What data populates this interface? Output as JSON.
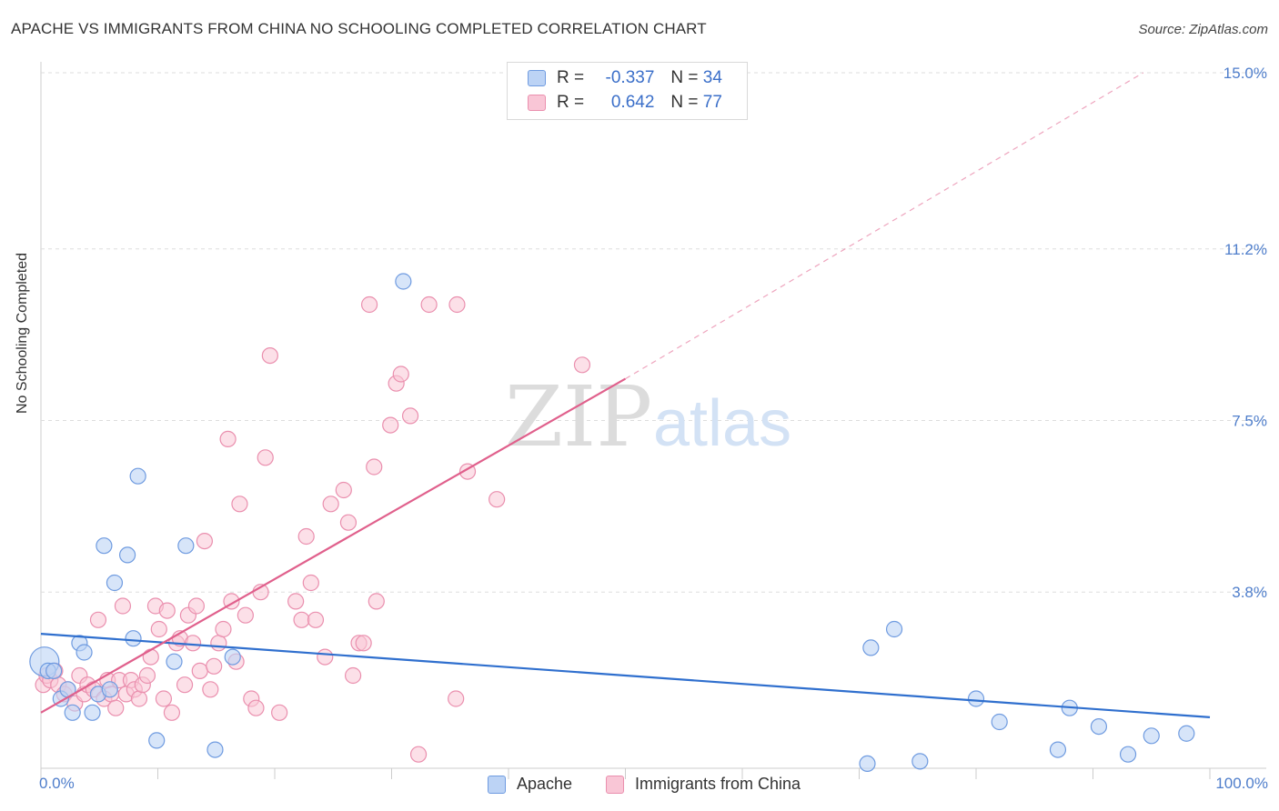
{
  "title": "APACHE VS IMMIGRANTS FROM CHINA NO SCHOOLING COMPLETED CORRELATION CHART",
  "source": "Source: ZipAtlas.com",
  "watermark": {
    "zip": "ZIP",
    "atlas": "atlas"
  },
  "legend_top": {
    "rows": [
      {
        "r_label": "R =",
        "r_value": "-0.337",
        "n_label": "N =",
        "n_value": "34"
      },
      {
        "r_label": "R =",
        "r_value": "0.642",
        "n_label": "N =",
        "n_value": "77"
      }
    ]
  },
  "colors": {
    "apache_fill": "#bcd3f5",
    "apache_stroke": "#6f9be0",
    "apache_line": "#2f6fce",
    "china_fill": "#f9c6d6",
    "china_stroke": "#ea8fae",
    "china_line": "#e0608c",
    "grid": "#dddddd",
    "tick_text": "#4f7ecb"
  },
  "chart_data": {
    "type": "scatter",
    "title": "APACHE VS IMMIGRANTS FROM CHINA NO SCHOOLING COMPLETED CORRELATION CHART",
    "xlabel": "",
    "ylabel": "No Schooling Completed",
    "xlim": [
      0,
      100
    ],
    "ylim": [
      0,
      15
    ],
    "x_tick_labels": [
      "0.0%",
      "100.0%"
    ],
    "y_ticks": [
      3.8,
      7.5,
      11.2,
      15.0
    ],
    "y_tick_labels": [
      "3.8%",
      "7.5%",
      "11.2%",
      "15.0%"
    ],
    "grid": true,
    "legend_position": "bottom",
    "series": [
      {
        "name": "Apache",
        "r": -0.337,
        "n": 34,
        "trend": {
          "x": [
            0,
            100
          ],
          "y": [
            2.9,
            1.1
          ]
        },
        "points": [
          [
            0.3,
            2.3
          ],
          [
            0.6,
            2.1
          ],
          [
            1.1,
            2.1
          ],
          [
            1.7,
            1.5
          ],
          [
            2.3,
            1.7
          ],
          [
            2.7,
            1.2
          ],
          [
            3.3,
            2.7
          ],
          [
            3.7,
            2.5
          ],
          [
            4.4,
            1.2
          ],
          [
            4.9,
            1.6
          ],
          [
            5.4,
            4.8
          ],
          [
            5.9,
            1.7
          ],
          [
            6.3,
            4.0
          ],
          [
            7.4,
            4.6
          ],
          [
            7.9,
            2.8
          ],
          [
            8.3,
            6.3
          ],
          [
            9.9,
            0.6
          ],
          [
            11.4,
            2.3
          ],
          [
            12.4,
            4.8
          ],
          [
            14.9,
            0.4
          ],
          [
            16.4,
            2.4
          ],
          [
            31.0,
            10.5
          ],
          [
            71.0,
            2.6
          ],
          [
            73.0,
            3.0
          ],
          [
            80.0,
            1.5
          ],
          [
            70.7,
            0.1
          ],
          [
            75.2,
            0.15
          ],
          [
            82.0,
            1.0
          ],
          [
            87.0,
            0.4
          ],
          [
            88.0,
            1.3
          ],
          [
            90.5,
            0.9
          ],
          [
            93.0,
            0.3
          ],
          [
            95.0,
            0.7
          ],
          [
            98.0,
            0.75
          ]
        ]
      },
      {
        "name": "Immigrants from China",
        "r": 0.642,
        "n": 77,
        "trend": {
          "x": [
            0,
            50
          ],
          "y": [
            1.2,
            8.4
          ]
        },
        "trend_dashed": {
          "x": [
            50,
            94.3
          ],
          "y": [
            8.4,
            15.0
          ]
        },
        "points": [
          [
            0.2,
            1.8
          ],
          [
            0.5,
            2.0
          ],
          [
            0.8,
            1.9
          ],
          [
            1.2,
            2.1
          ],
          [
            1.5,
            1.8
          ],
          [
            2.0,
            1.6
          ],
          [
            2.3,
            1.7
          ],
          [
            2.9,
            1.4
          ],
          [
            3.3,
            2.0
          ],
          [
            3.7,
            1.6
          ],
          [
            4.0,
            1.8
          ],
          [
            4.5,
            1.7
          ],
          [
            4.9,
            3.2
          ],
          [
            5.4,
            1.5
          ],
          [
            5.7,
            1.9
          ],
          [
            6.0,
            1.6
          ],
          [
            6.4,
            1.3
          ],
          [
            6.7,
            1.9
          ],
          [
            7.0,
            3.5
          ],
          [
            7.3,
            1.6
          ],
          [
            7.7,
            1.9
          ],
          [
            8.0,
            1.7
          ],
          [
            8.4,
            1.5
          ],
          [
            8.7,
            1.8
          ],
          [
            9.1,
            2.0
          ],
          [
            9.4,
            2.4
          ],
          [
            9.8,
            3.5
          ],
          [
            10.1,
            3.0
          ],
          [
            10.5,
            1.5
          ],
          [
            10.8,
            3.4
          ],
          [
            11.2,
            1.2
          ],
          [
            11.6,
            2.7
          ],
          [
            11.9,
            2.8
          ],
          [
            12.3,
            1.8
          ],
          [
            12.6,
            3.3
          ],
          [
            13.0,
            2.7
          ],
          [
            13.3,
            3.5
          ],
          [
            13.6,
            2.1
          ],
          [
            14.0,
            4.9
          ],
          [
            14.5,
            1.7
          ],
          [
            14.8,
            2.2
          ],
          [
            15.2,
            2.7
          ],
          [
            15.6,
            3.0
          ],
          [
            16.0,
            7.1
          ],
          [
            16.3,
            3.6
          ],
          [
            16.7,
            2.3
          ],
          [
            17.0,
            5.7
          ],
          [
            17.5,
            3.3
          ],
          [
            18.0,
            1.5
          ],
          [
            18.4,
            1.3
          ],
          [
            18.8,
            3.8
          ],
          [
            19.2,
            6.7
          ],
          [
            19.6,
            8.9
          ],
          [
            20.4,
            1.2
          ],
          [
            21.8,
            3.6
          ],
          [
            22.3,
            3.2
          ],
          [
            22.7,
            5.0
          ],
          [
            23.1,
            4.0
          ],
          [
            23.5,
            3.2
          ],
          [
            24.3,
            2.4
          ],
          [
            24.8,
            5.7
          ],
          [
            25.9,
            6.0
          ],
          [
            26.3,
            5.3
          ],
          [
            26.7,
            2.0
          ],
          [
            27.2,
            2.7
          ],
          [
            27.6,
            2.7
          ],
          [
            28.1,
            10.0
          ],
          [
            28.5,
            6.5
          ],
          [
            28.7,
            3.6
          ],
          [
            29.9,
            7.4
          ],
          [
            30.4,
            8.3
          ],
          [
            30.8,
            8.5
          ],
          [
            31.6,
            7.6
          ],
          [
            32.3,
            0.3
          ],
          [
            33.2,
            10.0
          ],
          [
            35.5,
            1.5
          ],
          [
            35.6,
            10.0
          ]
        ]
      }
    ],
    "extra_points_china": [
      [
        36.5,
        6.4
      ],
      [
        39.0,
        5.8
      ],
      [
        46.3,
        8.7
      ]
    ]
  }
}
